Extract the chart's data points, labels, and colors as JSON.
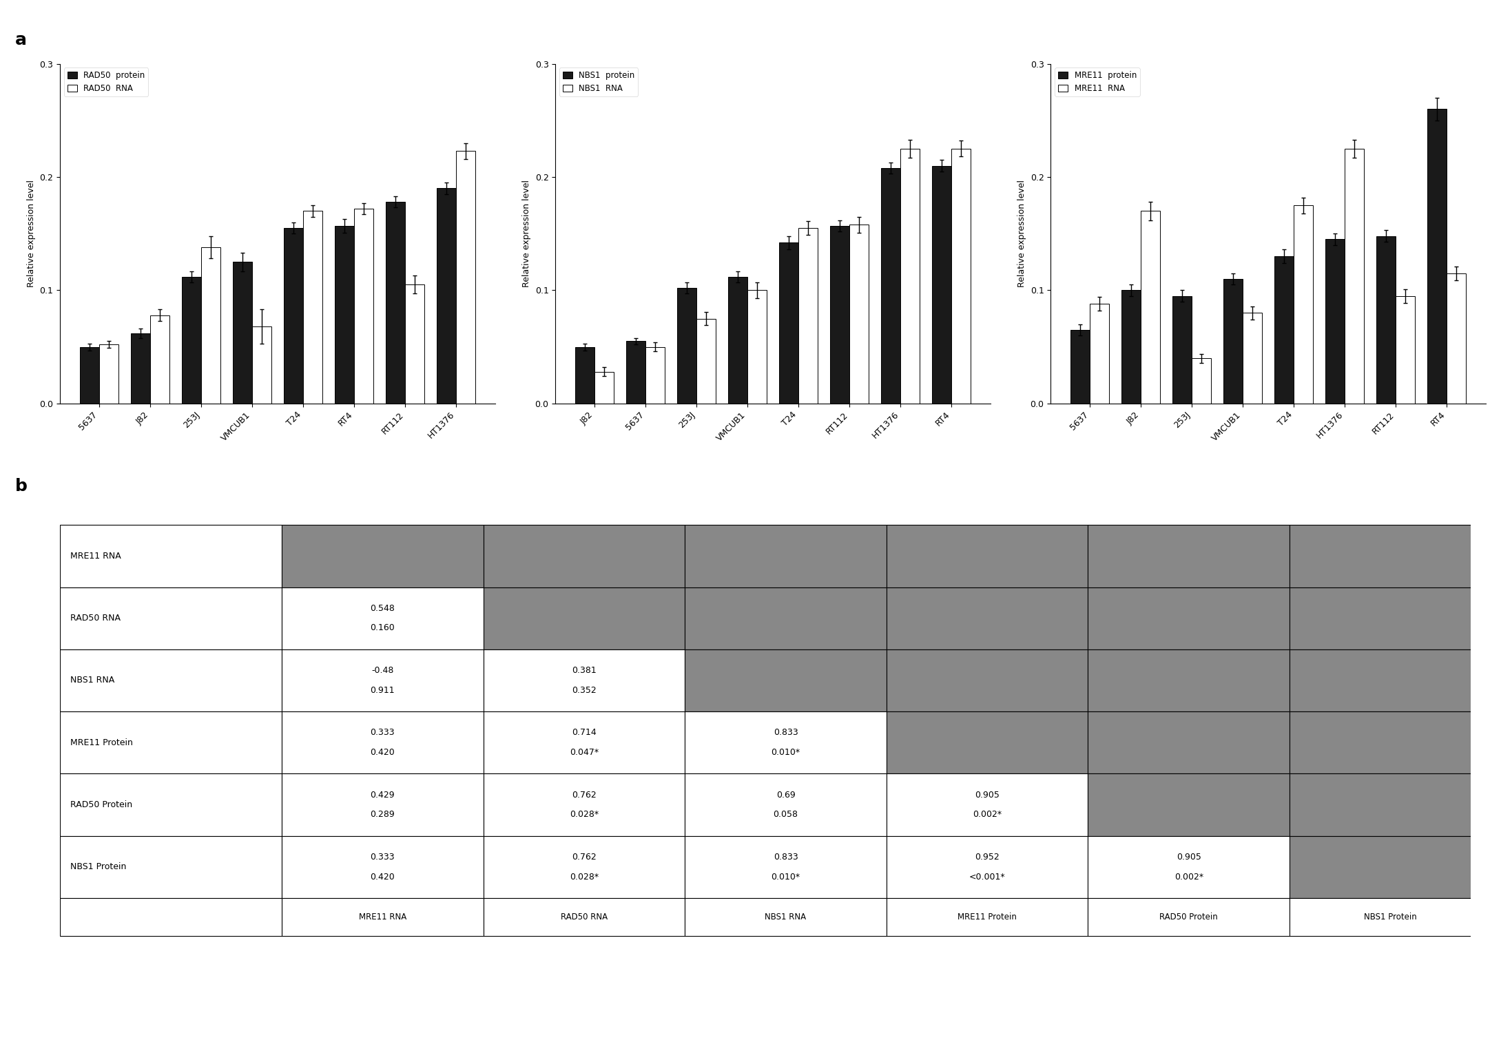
{
  "rad50_categories": [
    "5637",
    "J82",
    "253J",
    "VMCUB1",
    "T24",
    "RT4",
    "RT112",
    "HT1376"
  ],
  "rad50_protein": [
    0.05,
    0.062,
    0.112,
    0.125,
    0.155,
    0.157,
    0.178,
    0.19
  ],
  "rad50_rna": [
    0.052,
    0.078,
    0.138,
    0.068,
    0.17,
    0.172,
    0.105,
    0.223
  ],
  "rad50_protein_err": [
    0.003,
    0.004,
    0.005,
    0.008,
    0.005,
    0.006,
    0.005,
    0.005
  ],
  "rad50_rna_err": [
    0.003,
    0.005,
    0.01,
    0.015,
    0.005,
    0.005,
    0.008,
    0.007
  ],
  "nbs1_categories": [
    "J82",
    "5637",
    "253J",
    "VMCUB1",
    "T24",
    "RT112",
    "HT1376",
    "RT4"
  ],
  "nbs1_protein": [
    0.05,
    0.055,
    0.102,
    0.112,
    0.142,
    0.157,
    0.208,
    0.21
  ],
  "nbs1_rna": [
    0.028,
    0.05,
    0.075,
    0.1,
    0.155,
    0.158,
    0.225,
    0.225
  ],
  "nbs1_protein_err": [
    0.003,
    0.003,
    0.005,
    0.005,
    0.006,
    0.005,
    0.005,
    0.005
  ],
  "nbs1_rna_err": [
    0.004,
    0.004,
    0.006,
    0.007,
    0.006,
    0.007,
    0.008,
    0.007
  ],
  "mre11_categories": [
    "5637",
    "J82",
    "253J",
    "VMCUB1",
    "T24",
    "HT1376",
    "RT112",
    "RT4"
  ],
  "mre11_protein": [
    0.065,
    0.1,
    0.095,
    0.11,
    0.13,
    0.145,
    0.148,
    0.26
  ],
  "mre11_rna": [
    0.088,
    0.17,
    0.04,
    0.08,
    0.175,
    0.225,
    0.095,
    0.115
  ],
  "mre11_protein_err": [
    0.005,
    0.005,
    0.005,
    0.005,
    0.006,
    0.005,
    0.005,
    0.01
  ],
  "mre11_rna_err": [
    0.006,
    0.008,
    0.004,
    0.006,
    0.007,
    0.008,
    0.006,
    0.006
  ],
  "ylabel": "Relative expression level",
  "ylim": [
    0.0,
    0.3
  ],
  "yticks": [
    0.0,
    0.1,
    0.2,
    0.3
  ],
  "table_rows": [
    "MRE11 RNA",
    "RAD50 RNA",
    "NBS1 RNA",
    "MRE11 Protein",
    "RAD50 Protein",
    "NBS1 Protein"
  ],
  "table_cols": [
    "MRE11 RNA",
    "RAD50 RNA",
    "NBS1 RNA",
    "MRE11 Protein",
    "RAD50 Protein",
    "NBS1 Protein"
  ],
  "table_data": [
    [
      "",
      "",
      "",
      "",
      "",
      ""
    ],
    [
      "0.548\n0.160",
      "",
      "",
      "",
      "",
      ""
    ],
    [
      "-0.48\n0.911",
      "0.381\n0.352",
      "",
      "",
      "",
      ""
    ],
    [
      "0.333\n0.420",
      "0.714\n0.047*",
      "0.833\n0.010*",
      "",
      "",
      ""
    ],
    [
      "0.429\n0.289",
      "0.762\n0.028*",
      "0.69\n0.058",
      "0.905\n0.002*",
      "",
      ""
    ],
    [
      "0.333\n0.420",
      "0.762\n0.028*",
      "0.833\n0.010*",
      "0.952\n<0.001*",
      "0.905\n0.002*",
      ""
    ]
  ],
  "gray_color": "#888888",
  "bar_black": "#1a1a1a",
  "bar_white": "#ffffff"
}
